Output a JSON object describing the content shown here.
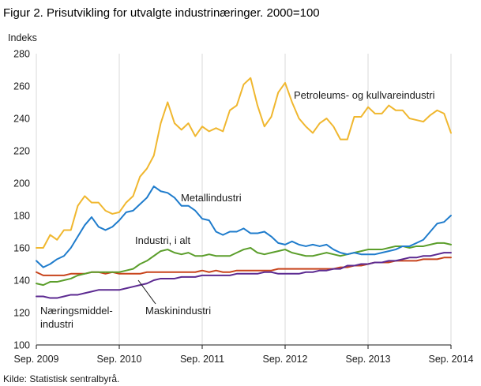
{
  "chart_data": {
    "type": "line",
    "title": "Figur 2. Prisutvikling for utvalgte industrinæringer. 2000=100",
    "ylabel": "Indeks",
    "xlabel": "",
    "ylim": [
      100,
      280
    ],
    "yticks": [
      100,
      120,
      140,
      160,
      180,
      200,
      220,
      240,
      260,
      280
    ],
    "xlim": [
      0,
      60
    ],
    "xticks": [
      {
        "pos": 0,
        "label": "Sep. 2009"
      },
      {
        "pos": 12,
        "label": "Sep. 2010"
      },
      {
        "pos": 24,
        "label": "Sep. 2011"
      },
      {
        "pos": 36,
        "label": "Sep. 2012"
      },
      {
        "pos": 48,
        "label": "Sep. 2013"
      },
      {
        "pos": 60,
        "label": "Sep. 2014"
      }
    ],
    "grid": "vertical",
    "source": "Kilde: Statistisk sentralbyrå.",
    "series": [
      {
        "name": "Petroleums- og kullvareindustri",
        "color": "#f0b72f",
        "values": [
          160,
          160,
          168,
          165,
          171,
          171,
          186,
          192,
          188,
          188,
          183,
          181,
          182,
          188,
          192,
          204,
          209,
          217,
          237,
          250,
          237,
          233,
          237,
          229,
          235,
          232,
          234,
          232,
          245,
          248,
          261,
          265,
          248,
          235,
          241,
          256,
          262,
          250,
          240,
          235,
          231,
          237,
          240,
          235,
          227,
          227,
          241,
          241,
          247,
          243,
          243,
          248,
          245,
          245,
          240,
          239,
          238,
          242,
          245,
          243,
          231
        ]
      },
      {
        "name": "Metallindustri",
        "color": "#1f7ccc",
        "values": [
          152,
          148,
          150,
          153,
          155,
          160,
          167,
          174,
          179,
          173,
          171,
          173,
          177,
          182,
          183,
          187,
          191,
          198,
          195,
          194,
          191,
          186,
          186,
          183,
          178,
          177,
          170,
          168,
          170,
          170,
          172,
          169,
          169,
          170,
          167,
          163,
          162,
          164,
          162,
          161,
          162,
          161,
          162,
          159,
          157,
          156,
          157,
          156,
          156,
          156,
          157,
          158,
          159,
          161,
          161,
          163,
          165,
          170,
          175,
          176,
          180
        ]
      },
      {
        "name": "Industri, i alt",
        "color": "#5b9e2b",
        "values": [
          138,
          137,
          139,
          139,
          140,
          141,
          143,
          144,
          145,
          145,
          145,
          145,
          145,
          146,
          147,
          150,
          152,
          155,
          158,
          159,
          157,
          156,
          157,
          155,
          155,
          156,
          155,
          155,
          155,
          157,
          159,
          160,
          157,
          156,
          157,
          158,
          159,
          157,
          156,
          155,
          155,
          156,
          157,
          156,
          155,
          156,
          157,
          158,
          159,
          159,
          159,
          160,
          161,
          161,
          160,
          161,
          161,
          162,
          163,
          163,
          162
        ]
      },
      {
        "name": "Næringsmiddel-industri",
        "color": "#c8441c",
        "values": [
          145,
          143,
          143,
          143,
          143,
          144,
          144,
          144,
          145,
          145,
          144,
          145,
          144,
          144,
          144,
          144,
          145,
          145,
          145,
          145,
          145,
          145,
          145,
          145,
          146,
          145,
          146,
          145,
          145,
          146,
          146,
          146,
          146,
          146,
          146,
          147,
          147,
          147,
          147,
          147,
          147,
          147,
          147,
          147,
          148,
          148,
          149,
          149,
          150,
          151,
          151,
          151,
          152,
          152,
          152,
          152,
          153,
          153,
          153,
          154,
          154
        ]
      },
      {
        "name": "Maskinindustri",
        "color": "#5c2a91",
        "values": [
          130,
          130,
          129,
          129,
          130,
          131,
          131,
          132,
          133,
          134,
          134,
          134,
          134,
          135,
          136,
          137,
          138,
          140,
          141,
          141,
          141,
          142,
          142,
          142,
          143,
          143,
          143,
          143,
          143,
          144,
          144,
          144,
          144,
          145,
          145,
          144,
          144,
          144,
          144,
          145,
          145,
          146,
          146,
          147,
          147,
          149,
          149,
          150,
          150,
          151,
          151,
          152,
          152,
          153,
          154,
          154,
          155,
          155,
          156,
          157,
          157
        ]
      }
    ],
    "annotations": [
      {
        "series": "Petroleums- og kullvareindustri",
        "label": "Petroleums- og kullvareindustri"
      },
      {
        "series": "Metallindustri",
        "label": "Metallindustri"
      },
      {
        "series": "Industri, i alt",
        "label": "Industri, i alt"
      },
      {
        "series": "Næringsmiddel-industri",
        "lines": [
          "Næringsmiddel-",
          "industri"
        ]
      },
      {
        "series": "Maskinindustri",
        "label": "Maskinindustri"
      }
    ]
  }
}
